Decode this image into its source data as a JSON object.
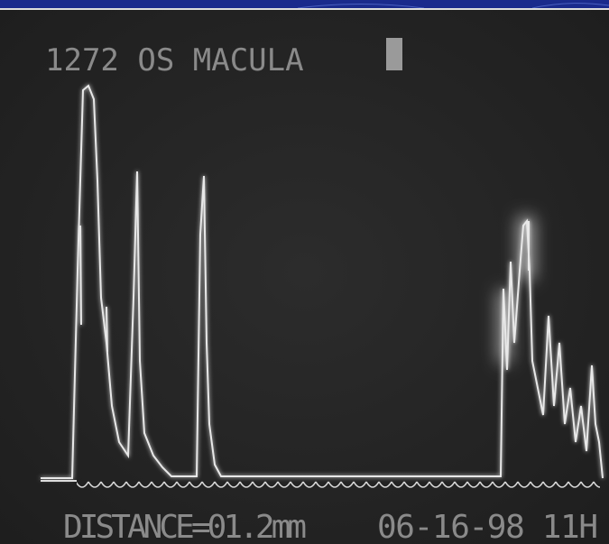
{
  "screen": {
    "header": "1272 OS MACULA",
    "footer_left": "DISTANCE=01.2mm",
    "footer_right": "06-16-98 11H"
  }
}
